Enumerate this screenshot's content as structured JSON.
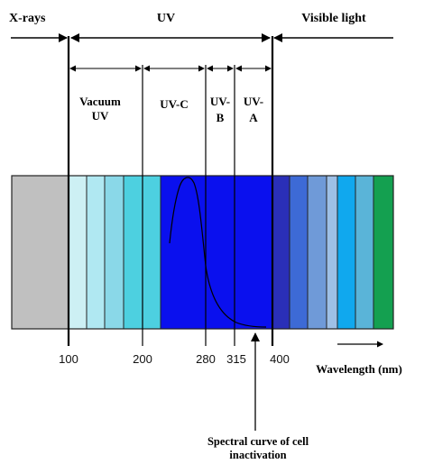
{
  "regions": {
    "xrays": "X-rays",
    "uv": "UV",
    "visible": "Visible light",
    "vacuum_uv": [
      "Vacuum",
      "UV"
    ],
    "uvc": "UV-C",
    "uvb": [
      "UV-",
      "B"
    ],
    "uva": [
      "UV-",
      "A"
    ]
  },
  "ticks": [
    "100",
    "200",
    "280",
    "315",
    "400"
  ],
  "axis_label": "Wavelength (nm)",
  "callout": [
    "Spectral curve of cell",
    "inactivation"
  ],
  "colors": {
    "xray_band": "#c0c0c0",
    "uv_bands": [
      "#cdf0f4",
      "#b0e8f2",
      "#8ad8e8",
      "#4dd0e0",
      "#0a10ee"
    ],
    "visible_bands": [
      "#2a2fb8",
      "#3d6ad6",
      "#6f9ad8",
      "#9ec0e6",
      "#10a8ee",
      "#5ab4d8",
      "#14a050"
    ]
  }
}
